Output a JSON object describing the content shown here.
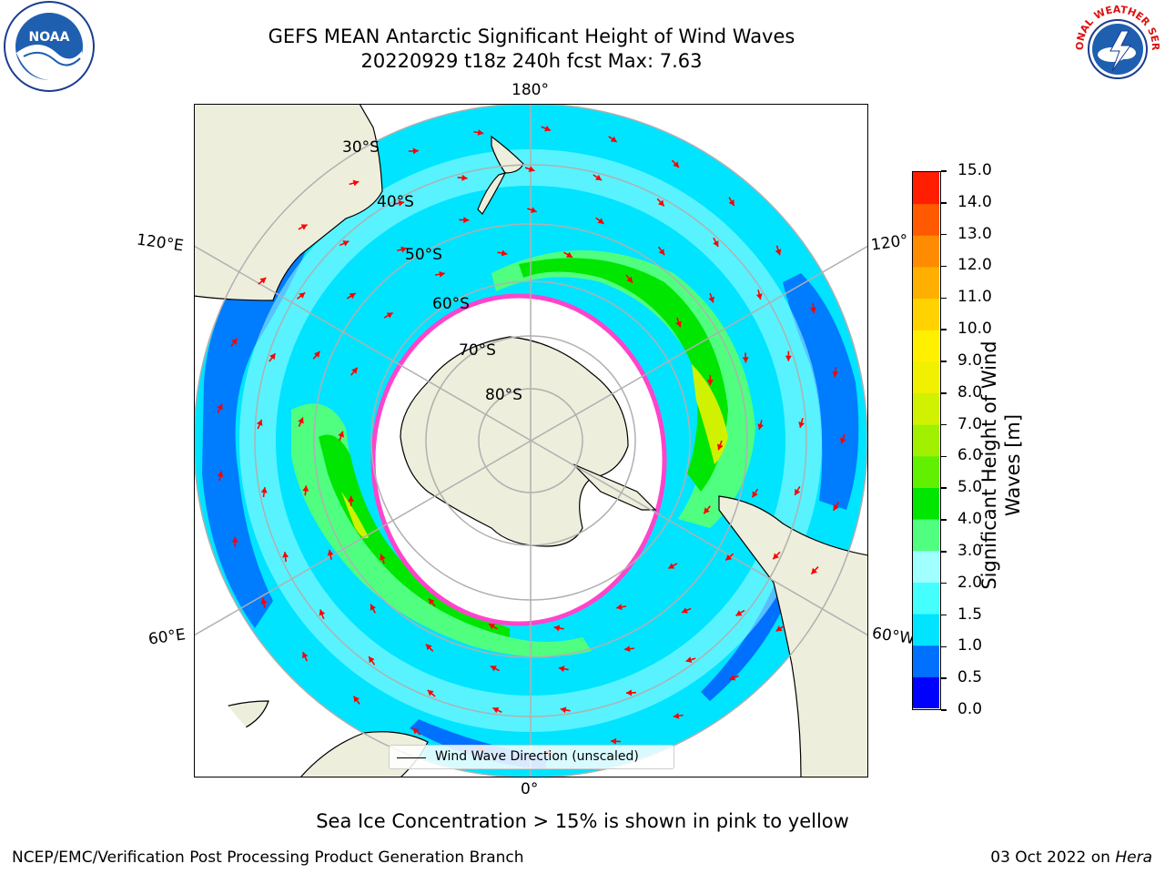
{
  "title": {
    "line1": "GEFS MEAN Antarctic Significant Height of Wind Waves",
    "line2": "20220929 t18z 240h fcst   Max: 7.63"
  },
  "logos": {
    "left": "NOAA",
    "right": "NATIONAL WEATHER SERVICE"
  },
  "map": {
    "projection": "south-polar-stereographic",
    "lat_labels": [
      "30°S",
      "40°S",
      "50°S",
      "60°S",
      "70°S",
      "80°S"
    ],
    "lon_labels": {
      "top": "180°",
      "bottom": "0°",
      "left_upper": "120°E",
      "left_lower": "60°E",
      "right_upper": "120°",
      "right_lower": "60°W"
    },
    "legend_text": "Wind Wave Direction (unscaled)",
    "colors": {
      "land": "#eeeedc",
      "grid": "#b0b0b0",
      "arrows": "#ff0000",
      "sea_ice": "#ff44cc"
    }
  },
  "colorbar": {
    "label": "Significant Height of Wind Waves [m]",
    "ticks": [
      "0.0",
      "0.5",
      "1.0",
      "1.5",
      "2.0",
      "3.0",
      "4.0",
      "5.0",
      "6.0",
      "7.0",
      "8.0",
      "9.0",
      "10.0",
      "11.0",
      "12.0",
      "13.0",
      "14.0",
      "15.0"
    ],
    "colors": [
      "#0000ff",
      "#0070ff",
      "#00e4ff",
      "#45ffff",
      "#a0ffff",
      "#50ff80",
      "#00e600",
      "#60f000",
      "#a0f000",
      "#d0f200",
      "#f0f000",
      "#fff000",
      "#ffd200",
      "#ffaf00",
      "#ff8c00",
      "#ff5a00",
      "#ff1e00"
    ]
  },
  "caption": "Sea Ice Concentration > 15% is shown in pink to yellow",
  "footer": {
    "left": "NCEP/EMC/Verification Post Processing Product Generation Branch",
    "right_date": "03 Oct 2022 on ",
    "right_host": "Hera"
  }
}
